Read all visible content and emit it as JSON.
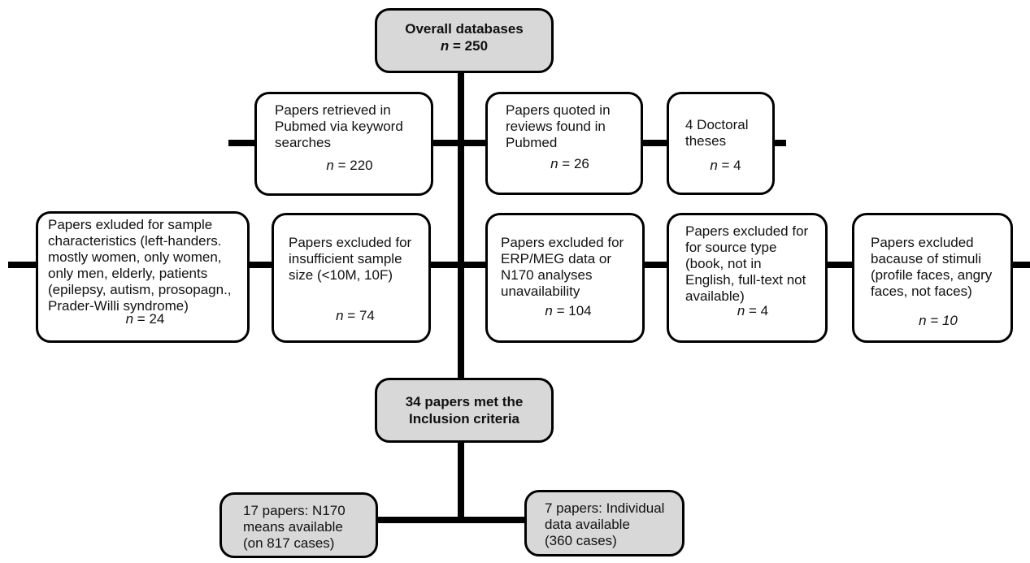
{
  "nodes": {
    "overall": {
      "title": "Overall databases",
      "n_label": "n",
      "n_text": " = 250"
    },
    "pubmed": {
      "text": "Papers retrieved in\nPubmed via keyword\nsearches",
      "n_label": "n",
      "n_text": " = 220"
    },
    "reviews": {
      "text": "Papers quoted in\nreviews found  in\nPubmed",
      "n_label": "n",
      "n_text": " = 26"
    },
    "theses": {
      "text": "4 Doctoral\ntheses",
      "n_label": "n",
      "n_text": " = 4"
    },
    "excl_sample": {
      "text": "Papers exluded for sample\ncharacteristics (left-handers.\nmostly women, only women,\nonly men, elderly, patients\n(epilepsy, autism, prosopagn.,\nPrader-Willi syndrome)",
      "n_label": "n",
      "n_text": " = 24"
    },
    "excl_size": {
      "text": "Papers excluded for\ninsufficient sample\nsize  (<10M, 10F)",
      "n_label": "n",
      "n_text": " = 74"
    },
    "excl_erp": {
      "text": "Papers excluded for\nERP/MEG data or\nN170 analyses\nunavailability",
      "n_label": "n",
      "n_text": " = 104"
    },
    "excl_source": {
      "text": "Papers excluded for\nfor source type\n(book, not in\nEnglish, full-text not\navailable)",
      "n_label": "n",
      "n_text": " =   4"
    },
    "excl_stimuli": {
      "text": "Papers excluded\nbacause of stimuli\n(profile faces, angry\nfaces, not faces)",
      "n_label": "n",
      "n_text": " = 10"
    },
    "met": {
      "title": "34 papers met the\nInclusion criteria"
    },
    "means": {
      "text": "17 papers: N170\nmeans available\n(on 817 cases)"
    },
    "individual": {
      "text": "7 papers: Individual\ndata available\n(360 cases)"
    }
  }
}
